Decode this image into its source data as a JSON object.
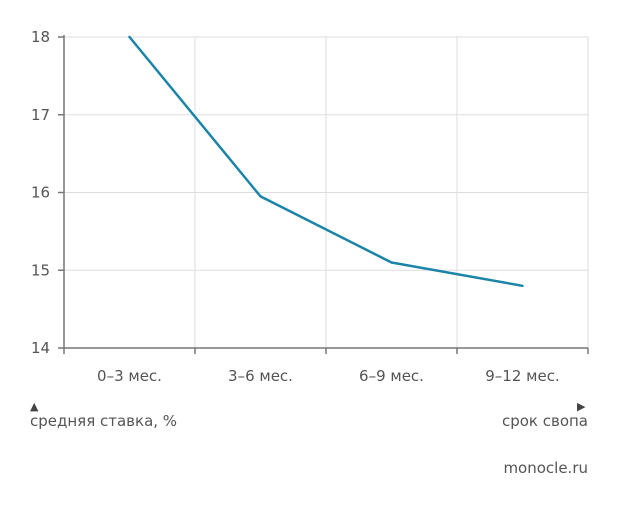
{
  "chart_data": {
    "type": "line",
    "categories": [
      "0–3 мес.",
      "3–6 мес.",
      "6–9 мес.",
      "9–12 мес."
    ],
    "series": [
      {
        "values": [
          18.0,
          15.95,
          15.1,
          14.8
        ],
        "color": "#1b84a8"
      }
    ],
    "ylim": [
      14,
      18
    ],
    "yticks": [
      "14",
      "15",
      "16",
      "17",
      "18"
    ],
    "grid": true
  },
  "legend": {
    "y_label": "средняя ставка, %",
    "x_label": "срок свопа",
    "up_arrow_icon": "triangle-up-icon",
    "right_arrow_icon": "triangle-right-icon"
  },
  "source": "monocle.ru"
}
